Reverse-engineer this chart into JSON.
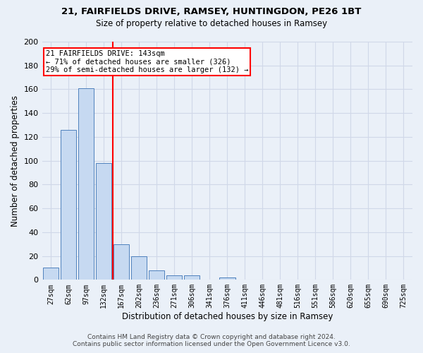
{
  "title1": "21, FAIRFIELDS DRIVE, RAMSEY, HUNTINGDON, PE26 1BT",
  "title2": "Size of property relative to detached houses in Ramsey",
  "xlabel": "Distribution of detached houses by size in Ramsey",
  "ylabel": "Number of detached properties",
  "footer1": "Contains HM Land Registry data © Crown copyright and database right 2024.",
  "footer2": "Contains public sector information licensed under the Open Government Licence v3.0.",
  "bar_labels": [
    "27sqm",
    "62sqm",
    "97sqm",
    "132sqm",
    "167sqm",
    "202sqm",
    "236sqm",
    "271sqm",
    "306sqm",
    "341sqm",
    "376sqm",
    "411sqm",
    "446sqm",
    "481sqm",
    "516sqm",
    "551sqm",
    "586sqm",
    "620sqm",
    "655sqm",
    "690sqm",
    "725sqm"
  ],
  "bar_values": [
    10,
    126,
    161,
    98,
    30,
    20,
    8,
    4,
    4,
    0,
    2,
    0,
    0,
    0,
    0,
    0,
    0,
    0,
    0,
    0,
    0
  ],
  "bar_color": "#c6d9f1",
  "bar_edge_color": "#4f81bd",
  "vline_color": "red",
  "annotation_text": "21 FAIRFIELDS DRIVE: 143sqm\n← 71% of detached houses are smaller (326)\n29% of semi-detached houses are larger (132) →",
  "annotation_box_color": "white",
  "annotation_box_edge": "red",
  "ylim": [
    0,
    200
  ],
  "yticks": [
    0,
    20,
    40,
    60,
    80,
    100,
    120,
    140,
    160,
    180,
    200
  ],
  "grid_color": "#d0d8e8",
  "bg_color": "#eaf0f8",
  "title1_fontsize": 9.5,
  "title2_fontsize": 8.5,
  "xlabel_fontsize": 8.5,
  "ylabel_fontsize": 8.5,
  "footer_fontsize": 6.5
}
